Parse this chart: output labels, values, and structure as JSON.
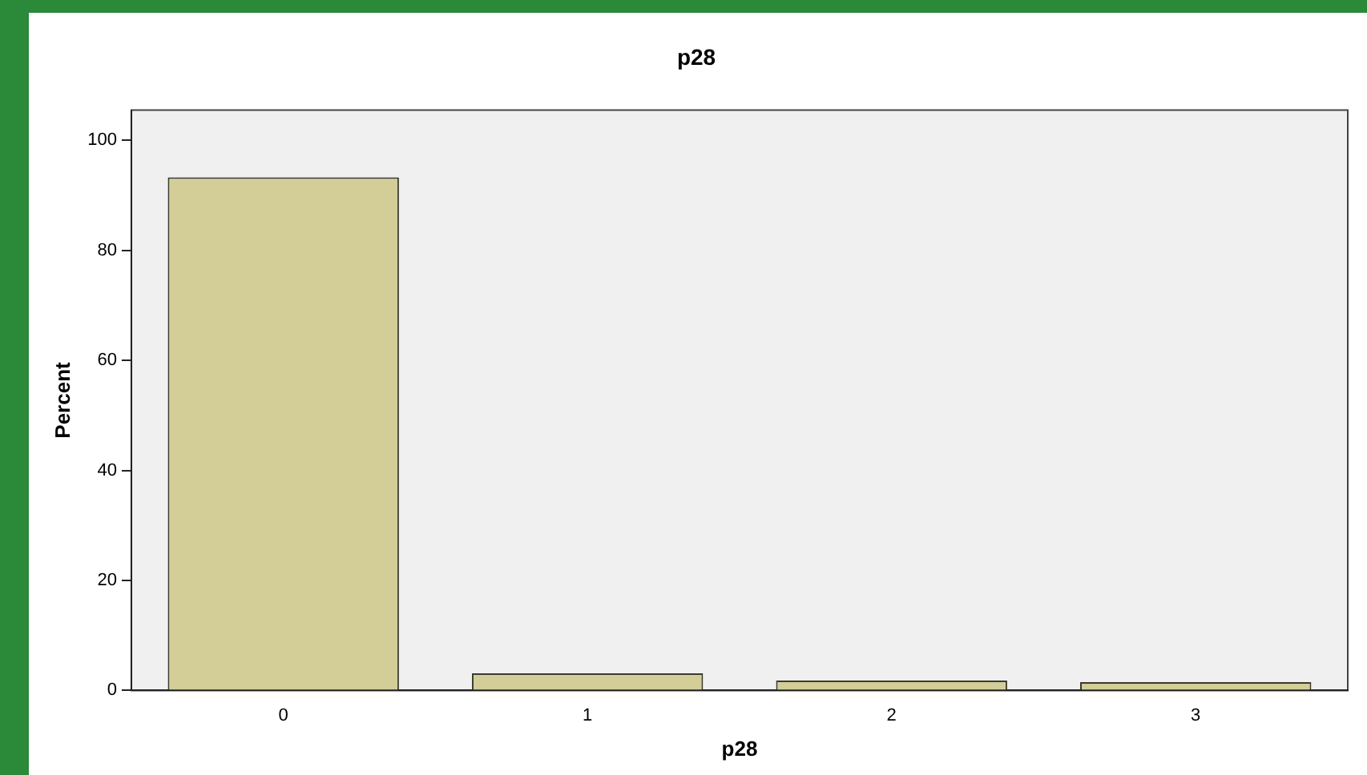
{
  "chart_data": {
    "type": "bar",
    "title": "p28",
    "xlabel": "p28",
    "ylabel": "Percent",
    "categories": [
      "0",
      "1",
      "2",
      "3"
    ],
    "values": [
      93.3,
      3.1,
      1.8,
      1.5
    ],
    "color": "#d3ce98",
    "ylim": [
      0,
      105.5
    ],
    "yticks": [
      0,
      20,
      40,
      60,
      80,
      100
    ],
    "grid": false,
    "legend": false
  }
}
